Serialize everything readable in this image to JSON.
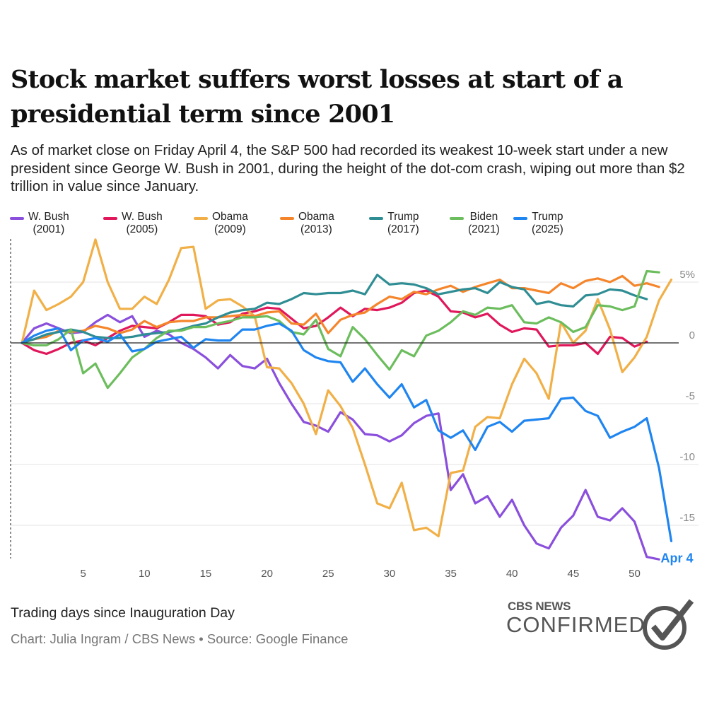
{
  "header": {
    "title": "Stock market suffers worst losses at start of a presidential term since 2001",
    "subtitle": "As of market close on Friday April 4, the S&P 500 had recorded its weakest 10-week start under a new president since George W. Bush in 2001, during the height of the dot-com crash, wiping out more than $2 trillion in value since January."
  },
  "footer": {
    "x_axis_title": "Trading days since Inauguration Day",
    "credit": "Chart: Julia Ingram / CBS News • Source: Google Finance",
    "logo_top": "CBS NEWS",
    "logo_bottom": "CONFIRMED"
  },
  "chart_data": {
    "type": "line",
    "title": "Stock market suffers worst losses at start of a presidential term since 2001",
    "xlabel": "Trading days since Inauguration Day",
    "ylabel": "",
    "xlim": [
      0,
      54
    ],
    "ylim": [
      -17.5,
      8.5
    ],
    "x_ticks": [
      5,
      10,
      15,
      20,
      25,
      30,
      35,
      40,
      45,
      50
    ],
    "y_ticks": [
      {
        "value": 5,
        "label": "5%"
      },
      {
        "value": 0,
        "label": "0"
      },
      {
        "value": -5,
        "label": "-5"
      },
      {
        "value": -10,
        "label": "-10"
      },
      {
        "value": -15,
        "label": "-15"
      }
    ],
    "annotation": {
      "label": "Apr 4",
      "series": "Trump (2025)",
      "x": 53,
      "y": -16.3
    },
    "series": [
      {
        "name": "W. Bush",
        "years": "(2001)",
        "color": "#8a4fdc",
        "values": [
          0,
          1.2,
          1.6,
          1.2,
          0.8,
          0.9,
          1.7,
          2.3,
          1.7,
          2.2,
          0.5,
          1.0,
          0.7,
          0.0,
          -0.5,
          -1.2,
          -2.1,
          -1.0,
          -1.9,
          -2.1,
          -1.3,
          -3.3,
          -5.0,
          -6.5,
          -6.8,
          -7.3,
          -5.7,
          -6.3,
          -7.5,
          -7.6,
          -8.1,
          -7.6,
          -6.6,
          -6.0,
          -5.8,
          -12.1,
          -10.8,
          -13.2,
          -12.6,
          -14.3,
          -12.9,
          -15.0,
          -16.5,
          -16.9,
          -15.2,
          -14.2,
          -12.1,
          -14.3,
          -14.6,
          -13.6,
          -14.7,
          -17.6,
          -17.8
        ]
      },
      {
        "name": "W. Bush",
        "years": "(2005)",
        "color": "#e0175a",
        "values": [
          0,
          -0.6,
          -0.9,
          -0.5,
          0.0,
          0.2,
          -0.2,
          0.4,
          1.0,
          1.4,
          1.3,
          1.2,
          1.7,
          2.3,
          2.3,
          2.2,
          1.5,
          1.7,
          2.4,
          2.6,
          2.9,
          2.8,
          2.0,
          1.2,
          1.4,
          2.1,
          2.9,
          2.2,
          2.8,
          2.7,
          2.9,
          3.3,
          4.1,
          4.3,
          3.8,
          2.6,
          2.5,
          2.1,
          2.4,
          1.5,
          0.9,
          1.2,
          1.1,
          -0.3,
          -0.2,
          -0.2,
          0.0,
          -0.9,
          0.5,
          0.4,
          -0.3,
          0.1
        ]
      },
      {
        "name": "Obama",
        "years": "(2009)",
        "color": "#f1b047",
        "values": [
          0,
          4.3,
          2.7,
          3.2,
          3.8,
          5.0,
          8.5,
          5.0,
          2.8,
          2.8,
          3.8,
          3.2,
          5.2,
          7.8,
          7.9,
          2.8,
          3.5,
          3.6,
          3.0,
          2.2,
          -2.0,
          -2.1,
          -3.3,
          -5.0,
          -7.5,
          -3.9,
          -5.2,
          -7.0,
          -10.0,
          -13.2,
          -13.6,
          -11.5,
          -15.4,
          -15.2,
          -15.9,
          -10.7,
          -10.5,
          -6.9,
          -6.1,
          -6.2,
          -3.4,
          -1.3,
          -2.5,
          -4.6,
          1.7,
          0.0,
          1.0,
          3.6,
          1.1,
          -2.4,
          -1.2,
          0.5,
          3.5,
          5.2
        ]
      },
      {
        "name": "Obama",
        "years": "(2013)",
        "color": "#f5852b",
        "values": [
          0,
          0.3,
          0.5,
          1.0,
          0.9,
          1.0,
          1.4,
          1.2,
          0.8,
          1.1,
          1.8,
          1.3,
          1.7,
          1.8,
          1.8,
          2.1,
          2.1,
          2.2,
          2.3,
          2.2,
          2.5,
          2.6,
          1.6,
          1.5,
          2.4,
          0.8,
          1.9,
          2.3,
          2.5,
          3.2,
          3.8,
          3.6,
          4.2,
          4.0,
          4.4,
          4.7,
          4.2,
          4.6,
          4.9,
          5.2,
          4.5,
          4.5,
          4.3,
          4.1,
          4.9,
          4.5,
          5.1,
          5.3,
          5.0,
          5.5,
          4.7,
          4.9,
          4.6
        ]
      },
      {
        "name": "Trump",
        "years": "(2017)",
        "color": "#2f8d94",
        "values": [
          0,
          0.3,
          0.7,
          0.9,
          1.1,
          0.9,
          0.5,
          0.4,
          0.4,
          0.5,
          0.7,
          0.8,
          0.9,
          1.1,
          1.4,
          1.6,
          2.1,
          2.5,
          2.7,
          2.8,
          3.3,
          3.2,
          3.6,
          4.1,
          4.0,
          4.1,
          4.1,
          4.3,
          4.0,
          5.6,
          4.8,
          4.9,
          4.8,
          4.5,
          4.0,
          4.2,
          4.4,
          4.5,
          4.1,
          5.0,
          4.6,
          4.4,
          3.2,
          3.4,
          3.1,
          3.0,
          3.9,
          4.0,
          4.4,
          4.3,
          3.9,
          3.6
        ]
      },
      {
        "name": "Biden",
        "years": "(2021)",
        "color": "#6cbd5d",
        "values": [
          0,
          -0.2,
          -0.2,
          0.3,
          1.1,
          -2.5,
          -1.7,
          -3.7,
          -2.5,
          -1.2,
          -0.5,
          0.4,
          1.0,
          1.0,
          1.3,
          1.3,
          1.6,
          1.8,
          2.1,
          2.1,
          2.2,
          1.8,
          0.9,
          0.7,
          1.9,
          -0.5,
          -1.1,
          1.3,
          0.3,
          -1.0,
          -2.2,
          -0.6,
          -1.1,
          0.6,
          1.0,
          1.7,
          2.6,
          2.3,
          2.9,
          2.8,
          3.1,
          1.7,
          1.6,
          2.1,
          1.7,
          0.9,
          1.3,
          3.1,
          3.0,
          2.7,
          3.0,
          5.9,
          5.8
        ]
      },
      {
        "name": "Trump",
        "years": "(2025)",
        "color": "#1f85f0",
        "values": [
          0,
          0.6,
          1.0,
          1.2,
          -0.6,
          0.2,
          0.4,
          0.1,
          0.7,
          -0.7,
          -0.5,
          0.1,
          0.3,
          0.5,
          -0.4,
          0.3,
          0.2,
          0.2,
          1.1,
          1.1,
          1.4,
          1.6,
          1.0,
          -0.6,
          -1.2,
          -1.5,
          -1.6,
          -3.2,
          -2.1,
          -3.4,
          -4.5,
          -3.4,
          -5.3,
          -4.7,
          -7.2,
          -7.8,
          -7.2,
          -8.8,
          -6.9,
          -6.5,
          -7.3,
          -6.4,
          -6.3,
          -6.2,
          -4.6,
          -4.5,
          -5.6,
          -6.0,
          -7.8,
          -7.3,
          -6.9,
          -6.2,
          -10.3,
          -16.3
        ]
      }
    ]
  }
}
